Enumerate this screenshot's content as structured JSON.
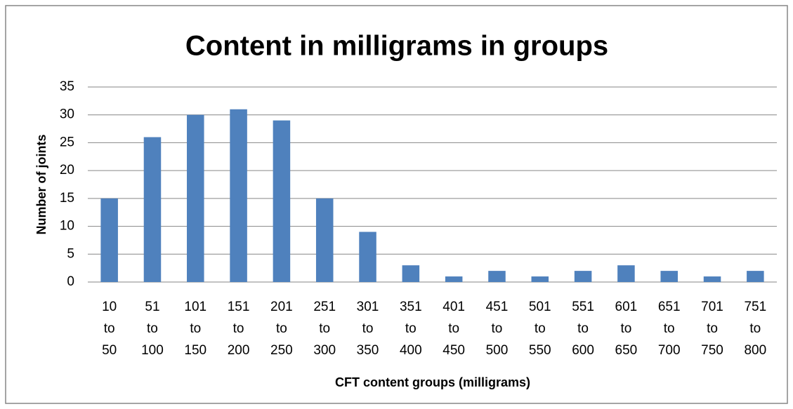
{
  "chart_data": {
    "type": "bar",
    "title": "Content in milligrams in groups",
    "x_label": "CFT content groups (milligrams)",
    "y_label": "Number of joints",
    "categories": [
      "10 to 50",
      "51 to 100",
      "101 to 150",
      "151 to 200",
      "201 to 250",
      "251 to 300",
      "301 to 350",
      "351 to 400",
      "401 to 450",
      "451 to 500",
      "501 to 550",
      "551 to 600",
      "601 to 650",
      "651 to 700",
      "701 to 750",
      "751 to 800"
    ],
    "values": [
      15,
      26,
      30,
      31,
      29,
      15,
      9,
      3,
      1,
      2,
      1,
      2,
      3,
      2,
      1,
      2
    ],
    "color": "#4f81bd",
    "ylim": [
      0,
      35
    ],
    "yticks": [
      0,
      5,
      10,
      15,
      20,
      25,
      30,
      35
    ],
    "grid": true
  }
}
